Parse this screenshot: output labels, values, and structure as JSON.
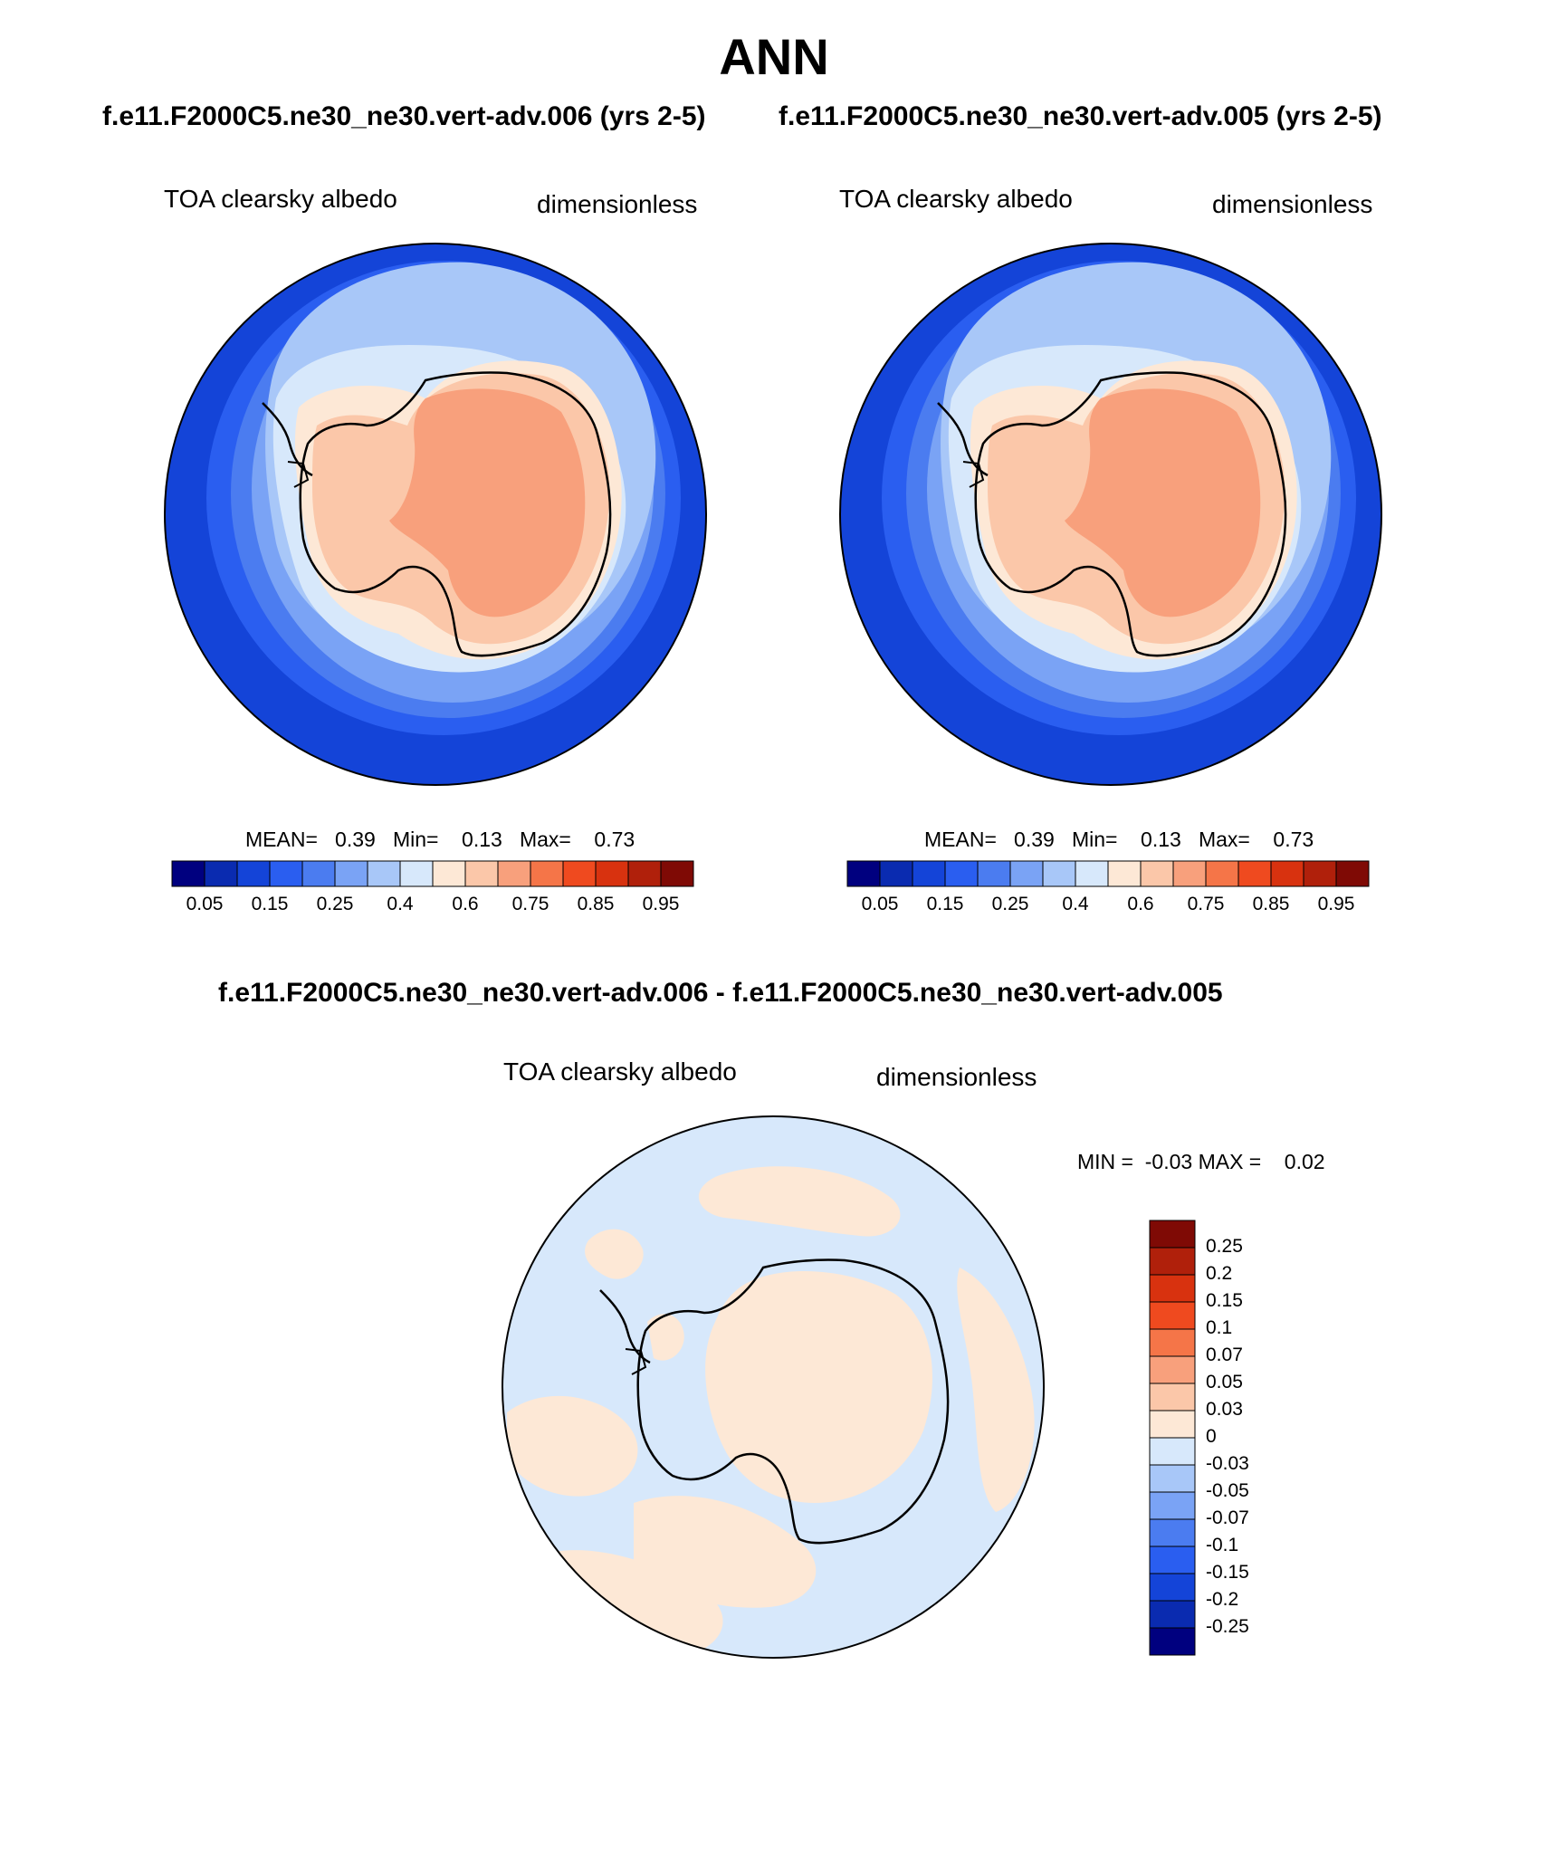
{
  "header": {
    "title": "ANN",
    "left_subtitle": "f.e11.F2000C5.ne30_ne30.vert-adv.006 (yrs 2-5)",
    "right_subtitle": "f.e11.F2000C5.ne30_ne30.vert-adv.005 (yrs 2-5)"
  },
  "panel_left": {
    "variable": "TOA clearsky albedo",
    "units": "dimensionless",
    "stats": "MEAN=   0.39   Min=    0.13   Max=    0.73"
  },
  "panel_right": {
    "variable": "TOA clearsky albedo",
    "units": "dimensionless",
    "stats": "MEAN=   0.39   Min=    0.13   Max=    0.73"
  },
  "diff": {
    "subtitle": "f.e11.F2000C5.ne30_ne30.vert-adv.006 - f.e11.F2000C5.ne30_ne30.vert-adv.005",
    "variable": "TOA clearsky albedo",
    "units": "dimensionless",
    "minmax": "MIN =  -0.03 MAX =    0.02"
  },
  "colorbar_top": {
    "labels": [
      "0.05",
      "0.15",
      "0.25",
      "0.4",
      "0.6",
      "0.75",
      "0.85",
      "0.95"
    ],
    "colors": [
      "#00007f",
      "#0a2bb0",
      "#1444d8",
      "#2a5ef0",
      "#4b7cf0",
      "#7aa3f5",
      "#a8c7f8",
      "#d7e8fb",
      "#fde8d6",
      "#fbc7a9",
      "#f8a07c",
      "#f57548",
      "#ef4a1f",
      "#d8320f",
      "#b0200b",
      "#7f0a05"
    ]
  },
  "colorbar_diff": {
    "labels": [
      "0.25",
      "0.2",
      "0.15",
      "0.1",
      "0.07",
      "0.05",
      "0.03",
      "0",
      "-0.03",
      "-0.05",
      "-0.07",
      "-0.1",
      "-0.15",
      "-0.2",
      "-0.25"
    ],
    "colors": [
      "#7f0a05",
      "#b0200b",
      "#d8320f",
      "#ef4a1f",
      "#f57548",
      "#f8a07c",
      "#fbc7a9",
      "#fde8d6",
      "#d7e8fb",
      "#a8c7f8",
      "#7aa3f5",
      "#4b7cf0",
      "#2a5ef0",
      "#1444d8",
      "#0a2bb0",
      "#00007f"
    ]
  },
  "map_colors": {
    "ocean_outer": "#1444d8",
    "ocean_mid1": "#2a5ef0",
    "ocean_mid2": "#4b7cf0",
    "ocean_mid3": "#7aa3f5",
    "seaice_1": "#a8c7f8",
    "seaice_2": "#d7e8fb",
    "shelf": "#fde8d6",
    "coast_ice": "#fbc7a9",
    "plateau": "#f8a07c",
    "diff_neg": "#d7e8fb",
    "diff_pos": "#fde8d6"
  }
}
